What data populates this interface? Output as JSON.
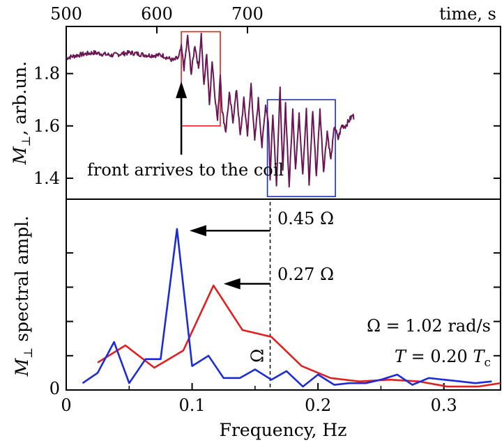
{
  "chart_data": [
    {
      "type": "line",
      "xlabel": "time, s",
      "ylabel_main": "M",
      "ylabel_sub": "⊥",
      "ylabel_rest": ", arb.un.",
      "xlim": [
        500,
        672
      ],
      "ylim": [
        1.32,
        1.98
      ],
      "x_ticks": [
        "500",
        "600",
        "700"
      ],
      "y_ticks": [
        "1.4",
        "1.6",
        "1.8"
      ],
      "series": [
        {
          "color": "#6b1552",
          "anchors": [
            [
              500,
              1.86
            ],
            [
              512,
              1.87
            ],
            [
              530,
              1.88
            ],
            [
              550,
              1.87
            ],
            [
              570,
              1.88
            ],
            [
              590,
              1.87
            ],
            [
              606,
              1.87
            ],
            [
              618,
              1.85
            ],
            [
              624,
              1.86
            ],
            [
              627,
              1.9
            ],
            [
              630,
              1.82
            ],
            [
              634,
              1.94
            ],
            [
              638,
              1.8
            ],
            [
              642,
              1.91
            ],
            [
              646,
              1.82
            ],
            [
              649,
              1.95
            ],
            [
              652,
              1.75
            ],
            [
              655,
              1.88
            ],
            [
              658,
              1.68
            ],
            [
              661,
              1.85
            ],
            [
              664,
              1.72
            ],
            [
              667,
              1.62
            ],
            [
              670,
              1.8
            ],
            [
              672,
              1.66
            ],
            [
              676,
              1.58
            ],
            [
              680,
              1.72
            ],
            [
              684,
              1.62
            ],
            [
              688,
              1.74
            ],
            [
              692,
              1.56
            ],
            [
              696,
              1.7
            ],
            [
              700,
              1.57
            ],
            [
              704,
              1.76
            ],
            [
              708,
              1.54
            ],
            [
              712,
              1.7
            ],
            [
              716,
              1.52
            ],
            [
              720,
              1.68
            ],
            [
              723,
              1.62
            ],
            [
              725,
              1.4
            ],
            [
              728,
              1.65
            ],
            [
              732,
              1.38
            ],
            [
              736,
              1.74
            ],
            [
              739,
              1.42
            ],
            [
              742,
              1.68
            ],
            [
              746,
              1.37
            ],
            [
              750,
              1.66
            ],
            [
              753,
              1.44
            ],
            [
              757,
              1.64
            ],
            [
              761,
              1.42
            ],
            [
              765,
              1.66
            ],
            [
              768,
              1.37
            ],
            [
              772,
              1.66
            ],
            [
              776,
              1.41
            ],
            [
              780,
              1.66
            ],
            [
              784,
              1.43
            ],
            [
              788,
              1.58
            ],
            [
              792,
              1.47
            ],
            [
              796,
              1.6
            ],
            [
              800,
              1.55
            ],
            [
              804,
              1.6
            ],
            [
              808,
              1.6
            ],
            [
              812,
              1.62
            ],
            [
              816,
              1.64
            ],
            [
              818,
              1.63
            ]
          ]
        }
      ],
      "boxes": [
        {
          "color": "#e02020",
          "x0": 627,
          "x1": 670,
          "y0": 1.6,
          "y1": 1.96
        },
        {
          "color": "#1a2bd8",
          "x0": 722,
          "x1": 797,
          "y0": 1.33,
          "y1": 1.7
        }
      ],
      "annotations": [
        {
          "text": "front arrives to the coil",
          "arrow_x": 627,
          "arrow_from_y": 1.49,
          "arrow_to_y": 1.77
        }
      ]
    },
    {
      "type": "line",
      "xlabel": "Frequency, Hz",
      "ylabel_main": "M",
      "ylabel_sub": "⊥",
      "ylabel_rest": " spectral ampl.",
      "xlim": [
        0,
        0.345
      ],
      "ylim": [
        0,
        1.0
      ],
      "x_ticks": [
        0,
        0.1,
        0.2,
        0.3
      ],
      "x_tick_labels": [
        "0",
        "0.1",
        "0.2",
        "0.3"
      ],
      "y_ticks": [
        0
      ],
      "y_tick_labels": [
        "0"
      ],
      "series": [
        {
          "color": "#e02020",
          "x": [
            0.025,
            0.047,
            0.07,
            0.093,
            0.117,
            0.14,
            0.163,
            0.187,
            0.21,
            0.233,
            0.257,
            0.28,
            0.303,
            0.327,
            0.345
          ],
          "y": [
            0.16,
            0.26,
            0.13,
            0.23,
            0.61,
            0.35,
            0.31,
            0.14,
            0.07,
            0.05,
            0.06,
            0.05,
            0.02,
            0.02,
            0.04
          ]
        },
        {
          "color": "#1a2bd8",
          "x": [
            0.013,
            0.025,
            0.038,
            0.05,
            0.063,
            0.075,
            0.088,
            0.1,
            0.113,
            0.125,
            0.138,
            0.15,
            0.163,
            0.175,
            0.188,
            0.2,
            0.213,
            0.225,
            0.238,
            0.25,
            0.263,
            0.275,
            0.288,
            0.3,
            0.313,
            0.325,
            0.338
          ],
          "y": [
            0.04,
            0.1,
            0.28,
            0.04,
            0.18,
            0.18,
            0.94,
            0.14,
            0.2,
            0.07,
            0.07,
            0.12,
            0.06,
            0.11,
            0.02,
            0.09,
            0.03,
            0.04,
            0.04,
            0.06,
            0.09,
            0.03,
            0.07,
            0.06,
            0.05,
            0.04,
            0.05
          ]
        }
      ],
      "omega_line_x": 0.162,
      "omega_label": "Ω",
      "arrows": [
        {
          "text": "0.45 Ω",
          "from_x": 0.162,
          "to_x": 0.098,
          "y": 0.93
        },
        {
          "text": "0.27 Ω",
          "from_x": 0.162,
          "to_x": 0.125,
          "y": 0.62
        }
      ],
      "param_texts": [
        "Ω = 1.02 rad/s",
        "T = 0.20 T_c"
      ]
    }
  ]
}
